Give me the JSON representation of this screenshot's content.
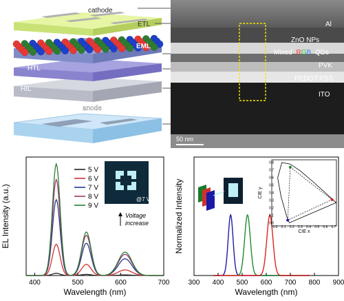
{
  "device": {
    "layers": [
      {
        "label": "cathode",
        "color": "#bdbdbd"
      },
      {
        "label": "ETL",
        "color": "#d9ef86"
      },
      {
        "label": "EML",
        "color": "#9aa6d8"
      },
      {
        "label": "HTL",
        "color": "#8a84cf"
      },
      {
        "label": "HIL",
        "color": "#b9bcc7"
      },
      {
        "label": "anode",
        "color": "#a9d3ee"
      }
    ],
    "qd_colors": [
      "#e53935",
      "#2e7d32",
      "#1e40c8"
    ]
  },
  "tem": {
    "labels": [
      "Al",
      "ZnO NPs",
      "Mixed",
      "R",
      "G",
      "B",
      "QDs",
      "PVK",
      "PEDOT:PSS",
      "ITO"
    ],
    "label_colors": {
      "R": "#ff3b2f",
      "G": "#2ecc40",
      "B": "#3b82f6"
    },
    "scalebar": "50 nm"
  },
  "chart_data": [
    {
      "type": "line",
      "xlabel": "Wavelength (nm)",
      "ylabel": "EL Intensity (a.u.)",
      "xlim": [
        380,
        700
      ],
      "xticks": [
        "400",
        "500",
        "600",
        "700"
      ],
      "legend_placement": "top-left",
      "inset_label": "@7 V",
      "annotation": [
        "Voltage",
        "increase"
      ],
      "peaks_nm": [
        450,
        520,
        610
      ],
      "series": [
        {
          "name": "5 V",
          "color": "#222222",
          "peak_heights": [
            0.02,
            0.01,
            0.005
          ]
        },
        {
          "name": "6 V",
          "color": "#d32f2f",
          "peak_heights": [
            0.28,
            0.1,
            0.05
          ]
        },
        {
          "name": "7 V",
          "color": "#283593",
          "peak_heights": [
            0.68,
            0.29,
            0.15
          ]
        },
        {
          "name": "8 V",
          "color": "#a2326b",
          "peak_heights": [
            0.86,
            0.36,
            0.19
          ]
        },
        {
          "name": "9 V",
          "color": "#2e7d32",
          "peak_heights": [
            1.0,
            0.39,
            0.21
          ]
        }
      ]
    },
    {
      "type": "line",
      "xlabel": "Wavelength (nm)",
      "ylabel": "Normalized Intensity",
      "xlim": [
        300,
        900
      ],
      "xticks": [
        "300",
        "400",
        "500",
        "600",
        "700",
        "800",
        "900"
      ],
      "series": [
        {
          "color": "#1a1aa6",
          "peak_nm": 452,
          "fwhm": 24,
          "value": 1.0
        },
        {
          "color": "#1e8a2e",
          "peak_nm": 522,
          "fwhm": 28,
          "value": 1.0
        },
        {
          "color": "#e02020",
          "peak_nm": 615,
          "fwhm": 30,
          "value": 1.0
        }
      ],
      "inset": {
        "xlabel": "CIE x",
        "ylabel": "CIE y",
        "xticks": [
          "0.0",
          "0.1",
          "0.2",
          "0.3",
          "0.4",
          "0.5",
          "0.6",
          "0.7"
        ],
        "yticks": [
          "0.0",
          "0.1",
          "0.2",
          "0.3",
          "0.4",
          "0.5",
          "0.6",
          "0.7",
          "0.8"
        ],
        "points": [
          {
            "x": 0.15,
            "y": 0.04,
            "color": "#1a1aa6"
          },
          {
            "x": 0.18,
            "y": 0.74,
            "color": "#1e8a2e"
          },
          {
            "x": 0.68,
            "y": 0.31,
            "color": "#e02020"
          }
        ]
      }
    }
  ]
}
